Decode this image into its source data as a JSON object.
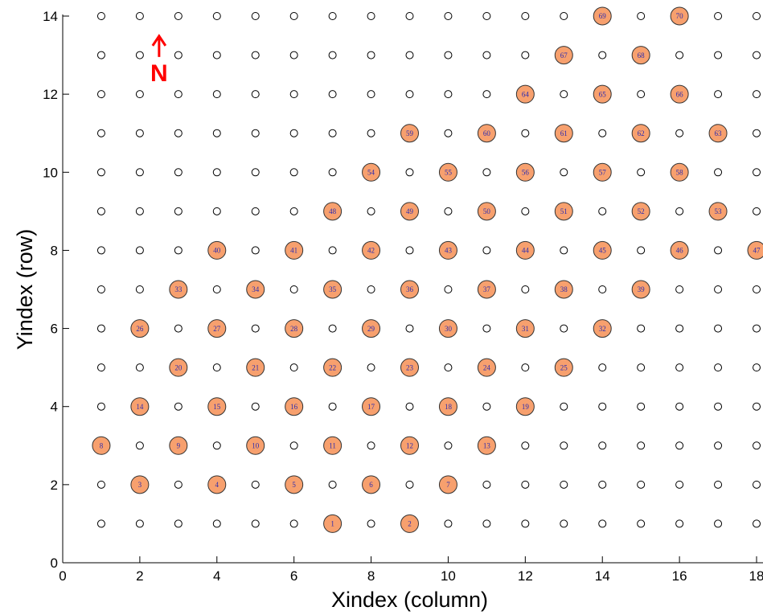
{
  "chart_data": {
    "type": "scatter",
    "xlabel": "Xindex (column)",
    "ylabel": "Yindex (row)",
    "xlim": [
      0,
      18
    ],
    "ylim": [
      0,
      14
    ],
    "xticks": [
      "0",
      "2",
      "4",
      "6",
      "8",
      "10",
      "12",
      "14",
      "16",
      "18"
    ],
    "yticks": [
      "0",
      "2",
      "4",
      "6",
      "8",
      "10",
      "12",
      "14"
    ],
    "grid": false,
    "background_markers": {
      "x_range": [
        1,
        18
      ],
      "y_range": [
        1,
        14
      ],
      "style": "small open circle"
    },
    "north_arrow": {
      "label": "N",
      "x": 2.5,
      "y": 12.5
    },
    "points": [
      {
        "id": 1,
        "x": 7,
        "y": 1
      },
      {
        "id": 2,
        "x": 9,
        "y": 1
      },
      {
        "id": 3,
        "x": 2,
        "y": 2
      },
      {
        "id": 4,
        "x": 4,
        "y": 2
      },
      {
        "id": 5,
        "x": 6,
        "y": 2
      },
      {
        "id": 6,
        "x": 8,
        "y": 2
      },
      {
        "id": 7,
        "x": 10,
        "y": 2
      },
      {
        "id": 8,
        "x": 1,
        "y": 3
      },
      {
        "id": 9,
        "x": 3,
        "y": 3
      },
      {
        "id": 10,
        "x": 5,
        "y": 3
      },
      {
        "id": 11,
        "x": 7,
        "y": 3
      },
      {
        "id": 12,
        "x": 9,
        "y": 3
      },
      {
        "id": 13,
        "x": 11,
        "y": 3
      },
      {
        "id": 14,
        "x": 2,
        "y": 4
      },
      {
        "id": 15,
        "x": 4,
        "y": 4
      },
      {
        "id": 16,
        "x": 6,
        "y": 4
      },
      {
        "id": 17,
        "x": 8,
        "y": 4
      },
      {
        "id": 18,
        "x": 10,
        "y": 4
      },
      {
        "id": 19,
        "x": 12,
        "y": 4
      },
      {
        "id": 20,
        "x": 3,
        "y": 5
      },
      {
        "id": 21,
        "x": 5,
        "y": 5
      },
      {
        "id": 22,
        "x": 7,
        "y": 5
      },
      {
        "id": 23,
        "x": 9,
        "y": 5
      },
      {
        "id": 24,
        "x": 11,
        "y": 5
      },
      {
        "id": 25,
        "x": 13,
        "y": 5
      },
      {
        "id": 26,
        "x": 2,
        "y": 6
      },
      {
        "id": 27,
        "x": 4,
        "y": 6
      },
      {
        "id": 28,
        "x": 6,
        "y": 6
      },
      {
        "id": 29,
        "x": 8,
        "y": 6
      },
      {
        "id": 30,
        "x": 10,
        "y": 6
      },
      {
        "id": 31,
        "x": 12,
        "y": 6
      },
      {
        "id": 32,
        "x": 14,
        "y": 6
      },
      {
        "id": 33,
        "x": 3,
        "y": 7
      },
      {
        "id": 34,
        "x": 5,
        "y": 7
      },
      {
        "id": 35,
        "x": 7,
        "y": 7
      },
      {
        "id": 36,
        "x": 9,
        "y": 7
      },
      {
        "id": 37,
        "x": 11,
        "y": 7
      },
      {
        "id": 38,
        "x": 13,
        "y": 7
      },
      {
        "id": 39,
        "x": 15,
        "y": 7
      },
      {
        "id": 40,
        "x": 4,
        "y": 8
      },
      {
        "id": 41,
        "x": 6,
        "y": 8
      },
      {
        "id": 42,
        "x": 8,
        "y": 8
      },
      {
        "id": 43,
        "x": 10,
        "y": 8
      },
      {
        "id": 44,
        "x": 12,
        "y": 8
      },
      {
        "id": 45,
        "x": 14,
        "y": 8
      },
      {
        "id": 46,
        "x": 16,
        "y": 8
      },
      {
        "id": 47,
        "x": 18,
        "y": 8
      },
      {
        "id": 48,
        "x": 7,
        "y": 9
      },
      {
        "id": 49,
        "x": 9,
        "y": 9
      },
      {
        "id": 50,
        "x": 11,
        "y": 9
      },
      {
        "id": 51,
        "x": 13,
        "y": 9
      },
      {
        "id": 52,
        "x": 15,
        "y": 9
      },
      {
        "id": 53,
        "x": 17,
        "y": 9
      },
      {
        "id": 54,
        "x": 8,
        "y": 10
      },
      {
        "id": 55,
        "x": 10,
        "y": 10
      },
      {
        "id": 56,
        "x": 12,
        "y": 10
      },
      {
        "id": 57,
        "x": 14,
        "y": 10
      },
      {
        "id": 58,
        "x": 16,
        "y": 10
      },
      {
        "id": 59,
        "x": 9,
        "y": 11
      },
      {
        "id": 60,
        "x": 11,
        "y": 11
      },
      {
        "id": 61,
        "x": 13,
        "y": 11
      },
      {
        "id": 62,
        "x": 15,
        "y": 11
      },
      {
        "id": 63,
        "x": 17,
        "y": 11
      },
      {
        "id": 64,
        "x": 12,
        "y": 12
      },
      {
        "id": 65,
        "x": 14,
        "y": 12
      },
      {
        "id": 66,
        "x": 16,
        "y": 12
      },
      {
        "id": 67,
        "x": 13,
        "y": 13
      },
      {
        "id": 68,
        "x": 15,
        "y": 13
      },
      {
        "id": 69,
        "x": 14,
        "y": 14
      },
      {
        "id": 70,
        "x": 16,
        "y": 14
      }
    ]
  },
  "colors": {
    "marker_fill": "#f7a06e",
    "marker_stroke": "#333333",
    "label_text": "#2b2bb0",
    "north_arrow": "#ff0000",
    "axis": "#000000"
  }
}
